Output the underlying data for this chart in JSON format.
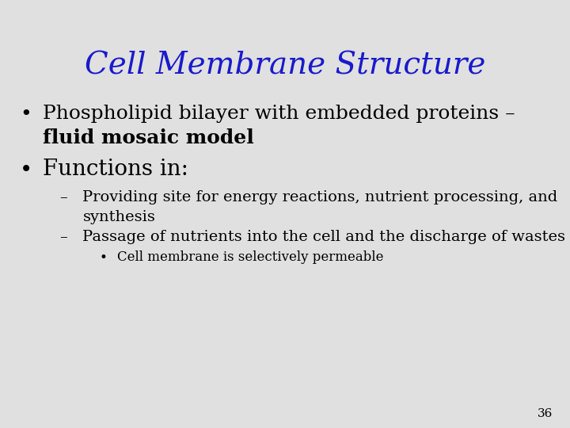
{
  "title": "Cell Membrane Structure",
  "title_color": "#1a1acc",
  "title_fontsize": 28,
  "background_color": "#e0e0e0",
  "text_color": "#000000",
  "slide_number": "36",
  "bullet1_line1": "Phospholipid bilayer with embedded proteins –",
  "bullet1_line2": "fluid mosaic model",
  "bullet2": "Functions in:",
  "sub1_line1": "Providing site for energy reactions, nutrient processing, and",
  "sub1_line2": "synthesis",
  "sub2": "Passage of nutrients into the cell and the discharge of wastes",
  "subsub1": "Cell membrane is selectively permeable",
  "main_bullet_fontsize": 18,
  "bullet2_fontsize": 20,
  "sub_bullet_fontsize": 14,
  "subsub_bullet_fontsize": 12,
  "slide_number_fontsize": 11
}
